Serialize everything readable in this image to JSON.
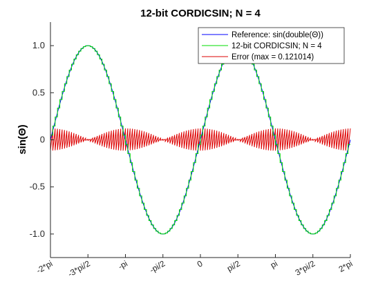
{
  "chart_data": {
    "type": "line",
    "title": "12-bit CORDICSIN; N = 4",
    "xlabel": "",
    "ylabel": "sin(Θ)",
    "xlim": [
      -6.2832,
      6.2832
    ],
    "ylim": [
      -1.25,
      1.25
    ],
    "grid": false,
    "legend_position": "top-right",
    "x_ticks": [
      {
        "value": -6.2832,
        "label": "-2*pi"
      },
      {
        "value": -4.7124,
        "label": "-3*pi/2"
      },
      {
        "value": -3.1416,
        "label": "-pi"
      },
      {
        "value": -1.5708,
        "label": "-pi/2"
      },
      {
        "value": 0,
        "label": "0"
      },
      {
        "value": 1.5708,
        "label": "pi/2"
      },
      {
        "value": 3.1416,
        "label": "pi"
      },
      {
        "value": 4.7124,
        "label": "3*pi/2"
      },
      {
        "value": 6.2832,
        "label": "2*pi"
      }
    ],
    "y_ticks": [
      {
        "value": 1,
        "label": "1.0"
      },
      {
        "value": 0.5,
        "label": "0.5"
      },
      {
        "value": 0,
        "label": "0"
      },
      {
        "value": -0.5,
        "label": "-0.5"
      },
      {
        "value": -1,
        "label": "-1.0"
      }
    ],
    "series": [
      {
        "name": "Reference: sin(double(Θ))",
        "color": "#0000ff",
        "kind": "sin"
      },
      {
        "name": "12-bit CORDICSIN; N = 4",
        "color": "#00dd00",
        "kind": "staircase_sin",
        "steps_per_period": 64
      },
      {
        "name": "Error (max = 0.121014)",
        "color": "#dd0000",
        "kind": "staircase_error",
        "max_error": 0.121014
      }
    ]
  }
}
